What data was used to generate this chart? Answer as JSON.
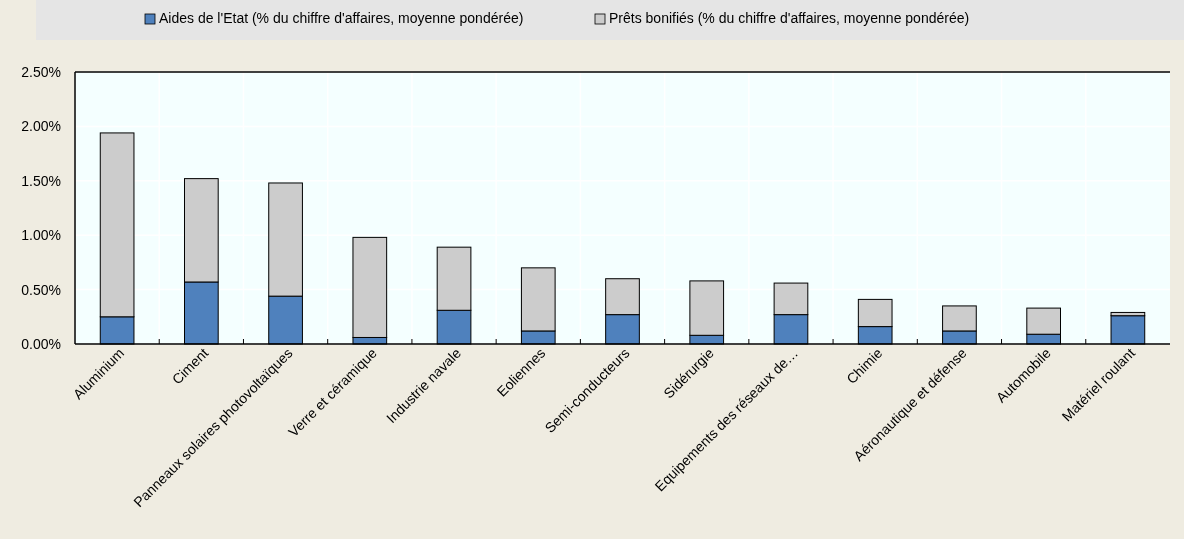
{
  "chart_data": {
    "type": "bar",
    "stacked": true,
    "legend": "top",
    "grid": true,
    "categories": [
      "Aluminium",
      "Ciment",
      "Panneaux solaires photovoltaïques",
      "Verre et céramique",
      "Industrie navale",
      "Eoliennes",
      "Semi-conducteurs",
      "Sidérurgie",
      "Equipements des réseaux de…",
      "Chimie",
      "Aéronautique et défense",
      "Automobile",
      "Matériel roulant"
    ],
    "series": [
      {
        "name": "Aides de l'Etat (% du chiffre d'affaires, moyenne pondérée)",
        "color": "#4f81bd",
        "values": [
          0.25,
          0.57,
          0.44,
          0.06,
          0.31,
          0.12,
          0.27,
          0.08,
          0.27,
          0.16,
          0.12,
          0.09,
          0.26
        ]
      },
      {
        "name": "Prêts bonifiés (% du chiffre d'affaires, moyenne pondérée)",
        "color": "#cccccc",
        "values": [
          1.69,
          0.95,
          1.04,
          0.92,
          0.58,
          0.58,
          0.33,
          0.5,
          0.29,
          0.25,
          0.23,
          0.24,
          0.03
        ]
      }
    ],
    "ylim": [
      0,
      2.5
    ],
    "yticks": [
      {
        "value": 0,
        "label": "0.00%"
      },
      {
        "value": 0.5,
        "label": "0.50%"
      },
      {
        "value": 1,
        "label": "1.00%"
      },
      {
        "value": 1.5,
        "label": "1.50%"
      },
      {
        "value": 2,
        "label": "2.00%"
      },
      {
        "value": 2.5,
        "label": "2.50%"
      }
    ]
  }
}
